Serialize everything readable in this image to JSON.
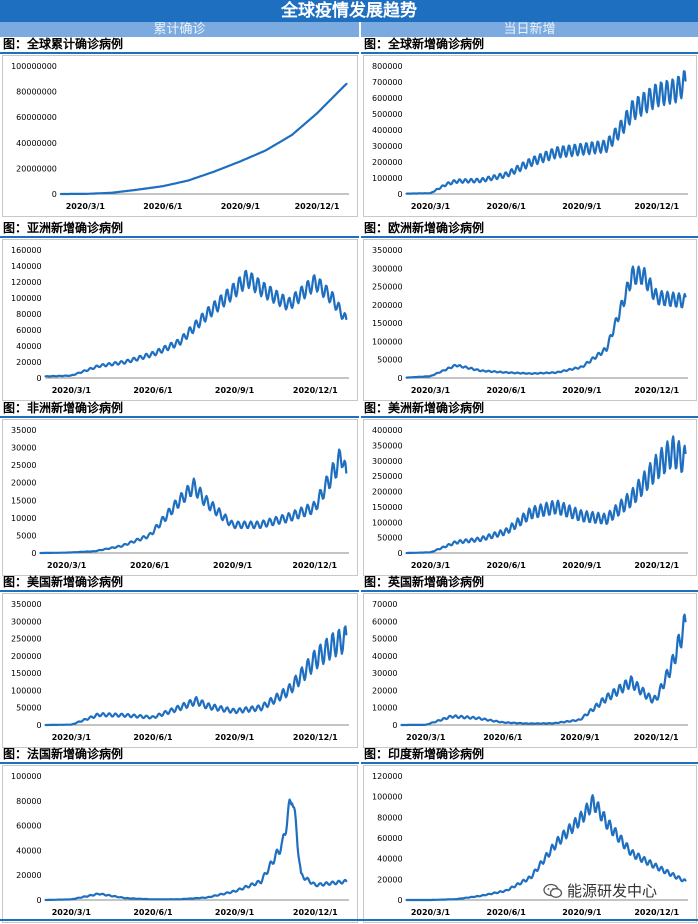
{
  "header": {
    "title": "全球疫情发展趋势",
    "left_column": "累计确诊",
    "right_column": "当日新增"
  },
  "watermark": "能源研发中心",
  "x_tick_labels": [
    "2020/3/1",
    "2020/6/1",
    "2020/9/1",
    "2020/12/1"
  ],
  "colors": {
    "line": "#1f6fc0",
    "banner": "#1f6fc0",
    "subheader": "#7aaadf"
  },
  "chart_data": [
    {
      "id": "global-cumulative",
      "type": "line",
      "title": "图：全球累计确诊病例",
      "yticks": [
        0,
        20000000,
        40000000,
        60000000,
        80000000,
        100000000
      ],
      "ylim": [
        0,
        100000000
      ],
      "series": [
        {
          "name": "全球累计确诊",
          "x": [
            "2020/2/1",
            "2020/3/1",
            "2020/4/1",
            "2020/5/1",
            "2020/6/1",
            "2020/7/1",
            "2020/8/1",
            "2020/9/1",
            "2020/10/1",
            "2020/11/1",
            "2020/12/1",
            "2021/1/1",
            "2021/1/5"
          ],
          "values": [
            10000,
            90000,
            900000,
            3300000,
            6100000,
            10500000,
            17500000,
            25500000,
            34000000,
            46000000,
            63000000,
            83500000,
            86000000
          ]
        }
      ]
    },
    {
      "id": "global-new",
      "type": "line",
      "title": "图：全球新增确诊病例",
      "yticks": [
        0,
        100000,
        200000,
        300000,
        400000,
        500000,
        600000,
        700000,
        800000
      ],
      "ylim": [
        0,
        800000
      ],
      "series": [
        {
          "name": "全球新增",
          "x": [
            "2020/2/1",
            "2020/3/1",
            "2020/3/20",
            "2020/4/1",
            "2020/5/1",
            "2020/6/1",
            "2020/7/1",
            "2020/8/1",
            "2020/9/1",
            "2020/10/1",
            "2020/10/20",
            "2020/11/1",
            "2020/12/1",
            "2020/12/25",
            "2021/1/5"
          ],
          "values": [
            2000,
            5000,
            60000,
            80000,
            85000,
            120000,
            200000,
            260000,
            280000,
            300000,
            420000,
            520000,
            620000,
            650000,
            700000
          ]
        }
      ]
    },
    {
      "id": "asia-new",
      "type": "line",
      "title": "图：亚洲新增确诊病例",
      "yticks": [
        0,
        20000,
        40000,
        60000,
        80000,
        100000,
        120000,
        140000,
        160000
      ],
      "ylim": [
        0,
        160000
      ],
      "series": [
        {
          "name": "亚洲新增",
          "x": [
            "2020/2/1",
            "2020/3/1",
            "2020/4/1",
            "2020/5/1",
            "2020/6/1",
            "2020/7/1",
            "2020/8/1",
            "2020/9/1",
            "2020/9/15",
            "2020/10/1",
            "2020/11/1",
            "2020/12/1",
            "2020/12/20",
            "2021/1/5"
          ],
          "values": [
            2000,
            3000,
            15000,
            20000,
            30000,
            45000,
            80000,
            110000,
            125000,
            112000,
            92000,
            120000,
            100000,
            72000
          ]
        }
      ]
    },
    {
      "id": "europe-new",
      "type": "line",
      "title": "图：欧洲新增确诊病例",
      "yticks": [
        0,
        50000,
        100000,
        150000,
        200000,
        250000,
        300000,
        350000
      ],
      "ylim": [
        0,
        350000
      ],
      "series": [
        {
          "name": "欧洲新增",
          "x": [
            "2020/2/1",
            "2020/3/1",
            "2020/4/1",
            "2020/5/1",
            "2020/6/1",
            "2020/7/1",
            "2020/8/1",
            "2020/9/1",
            "2020/10/1",
            "2020/10/20",
            "2020/11/1",
            "2020/11/15",
            "2020/12/1",
            "2021/1/5"
          ],
          "values": [
            1000,
            5000,
            35000,
            20000,
            15000,
            12000,
            15000,
            30000,
            80000,
            200000,
            280000,
            280000,
            220000,
            210000
          ]
        }
      ]
    },
    {
      "id": "africa-new",
      "type": "line",
      "title": "图：非洲新增确诊病例",
      "yticks": [
        0,
        5000,
        10000,
        15000,
        20000,
        25000,
        30000,
        35000
      ],
      "ylim": [
        0,
        35000
      ],
      "series": [
        {
          "name": "非洲新增",
          "x": [
            "2020/2/1",
            "2020/3/1",
            "2020/4/1",
            "2020/5/1",
            "2020/6/1",
            "2020/7/1",
            "2020/7/20",
            "2020/8/1",
            "2020/9/1",
            "2020/10/1",
            "2020/11/1",
            "2020/12/1",
            "2021/1/1",
            "2021/1/5"
          ],
          "values": [
            0,
            100,
            500,
            2000,
            5000,
            14000,
            19000,
            15000,
            8000,
            8000,
            10000,
            13000,
            28000,
            21000
          ]
        }
      ]
    },
    {
      "id": "americas-new",
      "type": "line",
      "title": "图：美洲新增确诊病例",
      "yticks": [
        0,
        50000,
        100000,
        150000,
        200000,
        250000,
        300000,
        350000,
        400000
      ],
      "ylim": [
        0,
        400000
      ],
      "series": [
        {
          "name": "美洲新增",
          "x": [
            "2020/2/1",
            "2020/3/1",
            "2020/4/1",
            "2020/5/1",
            "2020/6/1",
            "2020/7/1",
            "2020/8/1",
            "2020/9/1",
            "2020/10/1",
            "2020/11/1",
            "2020/12/1",
            "2020/12/20",
            "2021/1/5"
          ],
          "values": [
            0,
            2000,
            35000,
            45000,
            70000,
            130000,
            150000,
            120000,
            110000,
            180000,
            280000,
            330000,
            300000
          ]
        }
      ]
    },
    {
      "id": "usa-new",
      "type": "line",
      "title": "图：美国新增确诊病例",
      "yticks": [
        0,
        50000,
        100000,
        150000,
        200000,
        250000,
        300000,
        350000
      ],
      "ylim": [
        0,
        350000
      ],
      "series": [
        {
          "name": "美国新增",
          "x": [
            "2020/2/1",
            "2020/3/1",
            "2020/4/1",
            "2020/5/1",
            "2020/6/1",
            "2020/7/1",
            "2020/7/20",
            "2020/8/1",
            "2020/9/1",
            "2020/10/1",
            "2020/11/1",
            "2020/12/1",
            "2020/12/20",
            "2021/1/5"
          ],
          "values": [
            0,
            1000,
            30000,
            28000,
            22000,
            50000,
            70000,
            55000,
            40000,
            50000,
            100000,
            190000,
            230000,
            250000
          ]
        }
      ]
    },
    {
      "id": "uk-new",
      "type": "line",
      "title": "图：英国新增确诊病例",
      "yticks": [
        0,
        10000,
        20000,
        30000,
        40000,
        50000,
        60000,
        70000
      ],
      "ylim": [
        0,
        70000
      ],
      "series": [
        {
          "name": "英国新增",
          "x": [
            "2020/2/1",
            "2020/3/1",
            "2020/4/1",
            "2020/5/1",
            "2020/6/1",
            "2020/7/1",
            "2020/8/1",
            "2020/9/1",
            "2020/10/1",
            "2020/11/1",
            "2020/11/25",
            "2020/12/1",
            "2020/12/20",
            "2021/1/5"
          ],
          "values": [
            0,
            100,
            5000,
            4000,
            1500,
            800,
            1000,
            3000,
            15000,
            25000,
            15000,
            15000,
            35000,
            59000
          ]
        }
      ]
    },
    {
      "id": "france-new",
      "type": "line",
      "title": "图：法国新增确诊病例",
      "yticks": [
        0,
        20000,
        40000,
        60000,
        80000,
        100000
      ],
      "ylim": [
        0,
        100000
      ],
      "series": [
        {
          "name": "法国新增",
          "x": [
            "2020/2/1",
            "2020/3/1",
            "2020/4/1",
            "2020/5/1",
            "2020/6/1",
            "2020/7/1",
            "2020/8/1",
            "2020/9/1",
            "2020/10/1",
            "2020/10/25",
            "2020/11/5",
            "2020/11/15",
            "2020/12/1",
            "2021/1/5"
          ],
          "values": [
            0,
            500,
            5000,
            1500,
            500,
            600,
            2000,
            7000,
            15000,
            45000,
            86000,
            20000,
            12000,
            15000
          ]
        }
      ]
    },
    {
      "id": "india-new",
      "type": "line",
      "title": "图：印度新增确诊病例",
      "yticks": [
        0,
        20000,
        40000,
        60000,
        80000,
        100000,
        120000
      ],
      "ylim": [
        0,
        120000
      ],
      "series": [
        {
          "name": "印度新增",
          "x": [
            "2020/2/1",
            "2020/3/1",
            "2020/4/1",
            "2020/5/1",
            "2020/6/1",
            "2020/7/1",
            "2020/8/1",
            "2020/9/1",
            "2020/9/15",
            "2020/10/1",
            "2020/11/1",
            "2020/12/1",
            "2021/1/5"
          ],
          "values": [
            0,
            0,
            800,
            4000,
            9000,
            22000,
            55000,
            80000,
            95000,
            75000,
            45000,
            32000,
            18000
          ]
        }
      ]
    }
  ]
}
